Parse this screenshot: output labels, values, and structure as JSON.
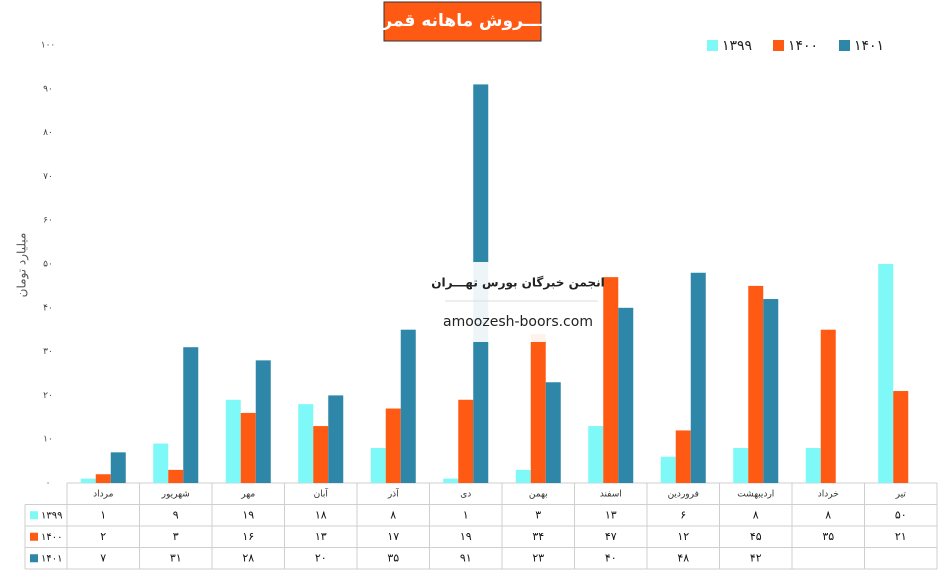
{
  "chart_data": {
    "type": "bar",
    "title": "فـــروش ماهانه قمرو",
    "y_label": "میلیارد تومان",
    "watermark": [
      "انجمن خبرگان بورس تهـــران",
      "amoozesh-boors.com"
    ],
    "categories": [
      "مرداد",
      "شهریور",
      "مهر",
      "آبان",
      "آذر",
      "دی",
      "بهمن",
      "اسفند",
      "فروردین",
      "اردیبهشت",
      "خرداد",
      "تیر"
    ],
    "series": [
      {
        "name": "۱۳۹۹",
        "color": "#7ff8f8",
        "values": [
          1,
          9,
          19,
          18,
          8,
          1,
          3,
          13,
          6,
          8,
          8,
          50
        ],
        "value_labels": [
          "۱",
          "۹",
          "۱۹",
          "۱۸",
          "۸",
          "۱",
          "۳",
          "۱۳",
          "۶",
          "۸",
          "۸",
          "۵۰"
        ]
      },
      {
        "name": "۱۴۰۰",
        "color": "#ff5a14",
        "values": [
          2,
          3,
          16,
          13,
          17,
          19,
          34,
          47,
          12,
          45,
          35,
          21
        ],
        "value_labels": [
          "۲",
          "۳",
          "۱۶",
          "۱۳",
          "۱۷",
          "۱۹",
          "۳۴",
          "۴۷",
          "۱۲",
          "۴۵",
          "۳۵",
          "۲۱"
        ]
      },
      {
        "name": "۱۴۰۱",
        "color": "#2e86a8",
        "values": [
          7,
          31,
          28,
          20,
          35,
          91,
          23,
          40,
          48,
          42,
          null,
          null
        ],
        "value_labels": [
          "۷",
          "۳۱",
          "۲۸",
          "۲۰",
          "۳۵",
          "۹۱",
          "۲۳",
          "۴۰",
          "۴۸",
          "۴۲",
          null,
          null
        ]
      }
    ],
    "ylim": [
      0,
      100
    ],
    "yticks": [
      {
        "value": 0,
        "label": "۰"
      },
      {
        "value": 10,
        "label": "۱۰"
      },
      {
        "value": 20,
        "label": "۲۰"
      },
      {
        "value": 30,
        "label": "۳۰"
      },
      {
        "value": 40,
        "label": "۴۰"
      },
      {
        "value": 50,
        "label": "۵۰"
      },
      {
        "value": 60,
        "label": "۶۰"
      },
      {
        "value": 70,
        "label": "۷۰"
      },
      {
        "value": 80,
        "label": "۸۰"
      },
      {
        "value": 90,
        "label": "۹۰"
      },
      {
        "value": 100,
        "label": "۱۰۰"
      }
    ],
    "grid": false,
    "legend": "top-right",
    "data_table": true
  }
}
